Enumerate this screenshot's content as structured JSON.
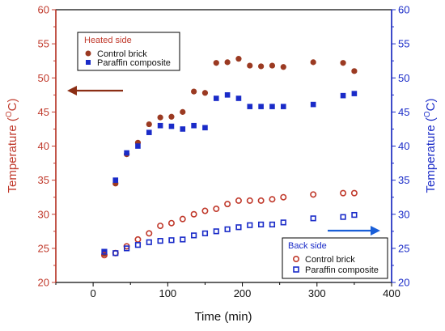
{
  "chart_data": {
    "type": "scatter",
    "xlabel": "Time (min)",
    "ylabel_left": {
      "base": "Temperature (",
      "sup": "O",
      "tail": "C)"
    },
    "ylabel_right": {
      "base": "Temperature (",
      "sup": "O",
      "tail": "C)"
    },
    "xlim": [
      -50,
      400
    ],
    "ylim": [
      20,
      60
    ],
    "ylim_right": [
      20,
      60
    ],
    "x_ticks": [
      "0",
      "100",
      "200",
      "300",
      "400"
    ],
    "y_ticks_left": [
      "20",
      "25",
      "30",
      "35",
      "40",
      "45",
      "50",
      "55",
      "60"
    ],
    "y_ticks_right": [
      "20",
      "25",
      "30",
      "35",
      "40",
      "45",
      "50",
      "55",
      "60"
    ],
    "grid": false,
    "colors": {
      "left_axis": "#c0392b",
      "right_axis": "#1a2bc8",
      "control": "#9b3a22",
      "paraffin": "#1a2bc8",
      "arrow_left": "#8b2e14",
      "arrow_right": "#1a5fd8"
    },
    "legends": [
      {
        "title": "Heated side",
        "title_color": "#c0392b",
        "placement": "top-left",
        "entries": [
          "Control brick",
          "Paraffin composite"
        ]
      },
      {
        "title": "Back side",
        "title_color": "#1a2bc8",
        "placement": "bottom-right",
        "entries": [
          "Control brick",
          "Paraffin composite"
        ]
      }
    ],
    "series": [
      {
        "name": "Control brick",
        "group": "Heated side",
        "marker": "filled-circle",
        "x": [
          15,
          30,
          45,
          60,
          75,
          90,
          105,
          120,
          135,
          150,
          165,
          180,
          195,
          210,
          225,
          240,
          255,
          295,
          335,
          350
        ],
        "y": [
          24.2,
          34.5,
          38.8,
          40.5,
          43.2,
          44.2,
          44.3,
          45.0,
          48.0,
          47.8,
          52.2,
          52.3,
          52.8,
          51.8,
          51.7,
          51.8,
          51.6,
          52.3,
          52.2,
          51.0
        ]
      },
      {
        "name": "Paraffin composite",
        "group": "Heated side",
        "marker": "filled-square",
        "x": [
          15,
          30,
          45,
          60,
          75,
          90,
          105,
          120,
          135,
          150,
          165,
          180,
          195,
          210,
          225,
          240,
          255,
          295,
          335,
          350
        ],
        "y": [
          24.5,
          35.0,
          39.0,
          40.0,
          42.0,
          43.0,
          42.9,
          42.5,
          43.0,
          42.7,
          47.0,
          47.5,
          47.0,
          45.8,
          45.8,
          45.8,
          45.8,
          46.1,
          47.4,
          47.7
        ]
      },
      {
        "name": "Control brick",
        "group": "Back side",
        "marker": "open-circle",
        "x": [
          15,
          30,
          45,
          60,
          75,
          90,
          105,
          120,
          135,
          150,
          165,
          180,
          195,
          210,
          225,
          240,
          255,
          295,
          335,
          350
        ],
        "y": [
          24.0,
          24.3,
          25.3,
          26.3,
          27.2,
          28.3,
          28.7,
          29.3,
          30.0,
          30.5,
          30.8,
          31.5,
          32.0,
          32.0,
          32.0,
          32.2,
          32.5,
          32.9,
          33.1,
          33.1
        ]
      },
      {
        "name": "Paraffin composite",
        "group": "Back side",
        "marker": "open-square",
        "x": [
          15,
          30,
          45,
          60,
          75,
          90,
          105,
          120,
          135,
          150,
          165,
          180,
          195,
          210,
          225,
          240,
          255,
          295,
          335,
          350
        ],
        "y": [
          24.5,
          24.3,
          25.0,
          25.5,
          25.9,
          26.1,
          26.2,
          26.3,
          26.9,
          27.2,
          27.5,
          27.8,
          28.1,
          28.4,
          28.5,
          28.5,
          28.8,
          29.4,
          29.6,
          29.9
        ]
      }
    ]
  }
}
